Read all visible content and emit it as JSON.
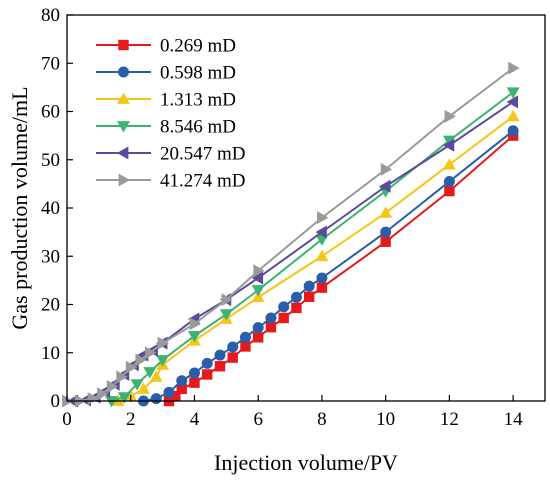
{
  "chart_data": {
    "type": "line",
    "xlabel": "Injection volume/PV",
    "ylabel": "Gas production volume/mL",
    "xlim": [
      0,
      15
    ],
    "ylim": [
      0,
      80
    ],
    "xticks": [
      0,
      2,
      4,
      6,
      8,
      10,
      12,
      14
    ],
    "yticks": [
      0,
      10,
      20,
      30,
      40,
      50,
      60,
      70,
      80
    ],
    "grid": false,
    "legend_position": "top-left",
    "series": [
      {
        "name": "0.269 mD",
        "color": "#e41a1c",
        "marker": "square",
        "points": [
          [
            3.2,
            0
          ],
          [
            3.4,
            1
          ],
          [
            3.6,
            2.5
          ],
          [
            4.0,
            3.8
          ],
          [
            4.4,
            5.5
          ],
          [
            4.8,
            7.2
          ],
          [
            5.2,
            9.0
          ],
          [
            5.6,
            11.3
          ],
          [
            6.0,
            13.2
          ],
          [
            6.4,
            15.3
          ],
          [
            6.8,
            17.2
          ],
          [
            7.2,
            19.3
          ],
          [
            7.6,
            21.6
          ],
          [
            8.0,
            23.5
          ],
          [
            10.0,
            33.0
          ],
          [
            12.0,
            43.5
          ],
          [
            14.0,
            55.0
          ]
        ]
      },
      {
        "name": "0.598 mD",
        "color": "#2a5ea8",
        "marker": "circle",
        "points": [
          [
            2.4,
            0
          ],
          [
            2.8,
            0.5
          ],
          [
            3.2,
            1.8
          ],
          [
            3.6,
            4.2
          ],
          [
            4.0,
            5.8
          ],
          [
            4.4,
            7.8
          ],
          [
            4.8,
            9.5
          ],
          [
            5.2,
            11.2
          ],
          [
            5.6,
            13.2
          ],
          [
            6.0,
            15.2
          ],
          [
            6.4,
            17.2
          ],
          [
            6.8,
            19.5
          ],
          [
            7.2,
            21.5
          ],
          [
            7.6,
            23.8
          ],
          [
            8.0,
            25.5
          ],
          [
            10.0,
            35.0
          ],
          [
            12.0,
            45.5
          ],
          [
            14.0,
            56.0
          ]
        ]
      },
      {
        "name": "1.313 mD",
        "color": "#f5c518",
        "marker": "triangle-up",
        "points": [
          [
            1.6,
            0
          ],
          [
            2.0,
            1.0
          ],
          [
            2.4,
            2.5
          ],
          [
            2.8,
            5.0
          ],
          [
            3.0,
            7.5
          ],
          [
            4.0,
            12.5
          ],
          [
            5.0,
            17.0
          ],
          [
            6.0,
            21.5
          ],
          [
            8.0,
            30.0
          ],
          [
            10.0,
            39.0
          ],
          [
            12.0,
            49.0
          ],
          [
            14.0,
            59.0
          ]
        ]
      },
      {
        "name": "8.546 mD",
        "color": "#3cb371",
        "marker": "triangle-down",
        "points": [
          [
            1.4,
            0
          ],
          [
            1.8,
            0.8
          ],
          [
            2.2,
            3.5
          ],
          [
            2.6,
            6.0
          ],
          [
            3.0,
            8.5
          ],
          [
            4.0,
            13.5
          ],
          [
            5.0,
            18.0
          ],
          [
            6.0,
            23.0
          ],
          [
            8.0,
            33.5
          ],
          [
            10.0,
            43.5
          ],
          [
            12.0,
            54.0
          ],
          [
            14.0,
            64.0
          ]
        ]
      },
      {
        "name": "20.547 mD",
        "color": "#5b4a9b",
        "marker": "triangle-left",
        "points": [
          [
            0.2,
            0
          ],
          [
            0.6,
            0.2
          ],
          [
            0.9,
            0.8
          ],
          [
            1.2,
            2.0
          ],
          [
            1.5,
            3.5
          ],
          [
            1.8,
            5.5
          ],
          [
            2.1,
            7.5
          ],
          [
            2.4,
            9.5
          ],
          [
            2.7,
            10.5
          ],
          [
            3.0,
            12.0
          ],
          [
            4.0,
            17.0
          ],
          [
            5.0,
            21.0
          ],
          [
            6.0,
            25.5
          ],
          [
            8.0,
            35.0
          ],
          [
            10.0,
            44.5
          ],
          [
            12.0,
            53.0
          ],
          [
            14.0,
            62.0
          ]
        ]
      },
      {
        "name": "41.274 mD",
        "color": "#9a9a9a",
        "marker": "triangle-right",
        "points": [
          [
            0,
            0
          ],
          [
            0.4,
            0
          ],
          [
            0.8,
            0.5
          ],
          [
            1.1,
            1.5
          ],
          [
            1.4,
            3.0
          ],
          [
            1.7,
            5.0
          ],
          [
            2.0,
            7.0
          ],
          [
            2.3,
            8.5
          ],
          [
            2.6,
            10.0
          ],
          [
            3.0,
            12.0
          ],
          [
            4.0,
            16.0
          ],
          [
            5.0,
            21.0
          ],
          [
            6.0,
            27.0
          ],
          [
            8.0,
            38.0
          ],
          [
            10.0,
            48.0
          ],
          [
            12.0,
            59.0
          ],
          [
            14.0,
            69.0
          ]
        ]
      }
    ]
  }
}
